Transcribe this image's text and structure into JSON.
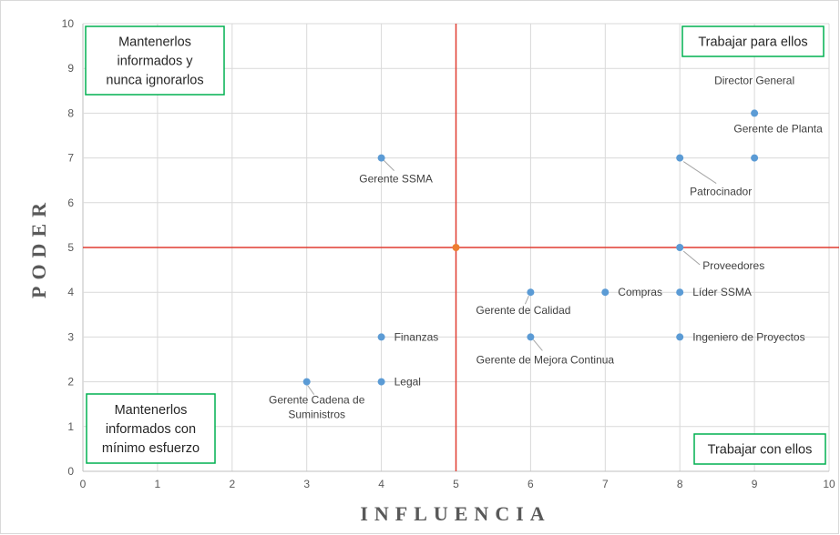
{
  "chart_data": {
    "type": "scatter",
    "title": "",
    "xlabel": "INFLUENCIA",
    "ylabel": "PODER",
    "xlim": [
      0,
      10
    ],
    "ylim": [
      0,
      10
    ],
    "x_ticks": [
      "0",
      "1",
      "2",
      "3",
      "4",
      "5",
      "6",
      "7",
      "8",
      "9",
      "10"
    ],
    "y_ticks": [
      "0",
      "1",
      "2",
      "3",
      "4",
      "5",
      "6",
      "7",
      "8",
      "9",
      "10"
    ],
    "grid": true,
    "colors": {
      "points": "#5b9bd5",
      "center": "#ed7d31",
      "dividers": "#e03c31",
      "boxes": "#00b050"
    },
    "dividers": {
      "x": 5,
      "y": 5
    },
    "center_point": {
      "x": 5,
      "y": 5
    },
    "points": [
      {
        "label": "Director General",
        "x": 9,
        "y": 8
      },
      {
        "label": "Gerente de Planta",
        "x": 9,
        "y": 7
      },
      {
        "label": "Patrocinador",
        "x": 8,
        "y": 7
      },
      {
        "label": "Gerente SSMA",
        "x": 4,
        "y": 7
      },
      {
        "label": "Proveedores",
        "x": 8,
        "y": 5
      },
      {
        "label": "Gerente de Calidad",
        "x": 6,
        "y": 4
      },
      {
        "label": "Compras",
        "x": 7,
        "y": 4
      },
      {
        "label": "Líder SSMA",
        "x": 8,
        "y": 4
      },
      {
        "label": "Finanzas",
        "x": 4,
        "y": 3
      },
      {
        "label": "Gerente de Mejora Continua",
        "x": 6,
        "y": 3
      },
      {
        "label": "Ingeniero de Proyectos",
        "x": 8,
        "y": 3
      },
      {
        "label": "Gerente Cadena de Suministros",
        "x": 3,
        "y": 2
      },
      {
        "label": "Legal",
        "x": 4,
        "y": 2
      }
    ],
    "quadrants": {
      "top_left": [
        "Mantenerlos",
        "informados y",
        "nunca ignorarlos"
      ],
      "top_right": [
        "Trabajar para ellos"
      ],
      "bottom_left": [
        "Mantenerlos",
        "informados con",
        "mínimo esfuerzo"
      ],
      "bottom_right": [
        "Trabajar con ellos"
      ]
    }
  }
}
